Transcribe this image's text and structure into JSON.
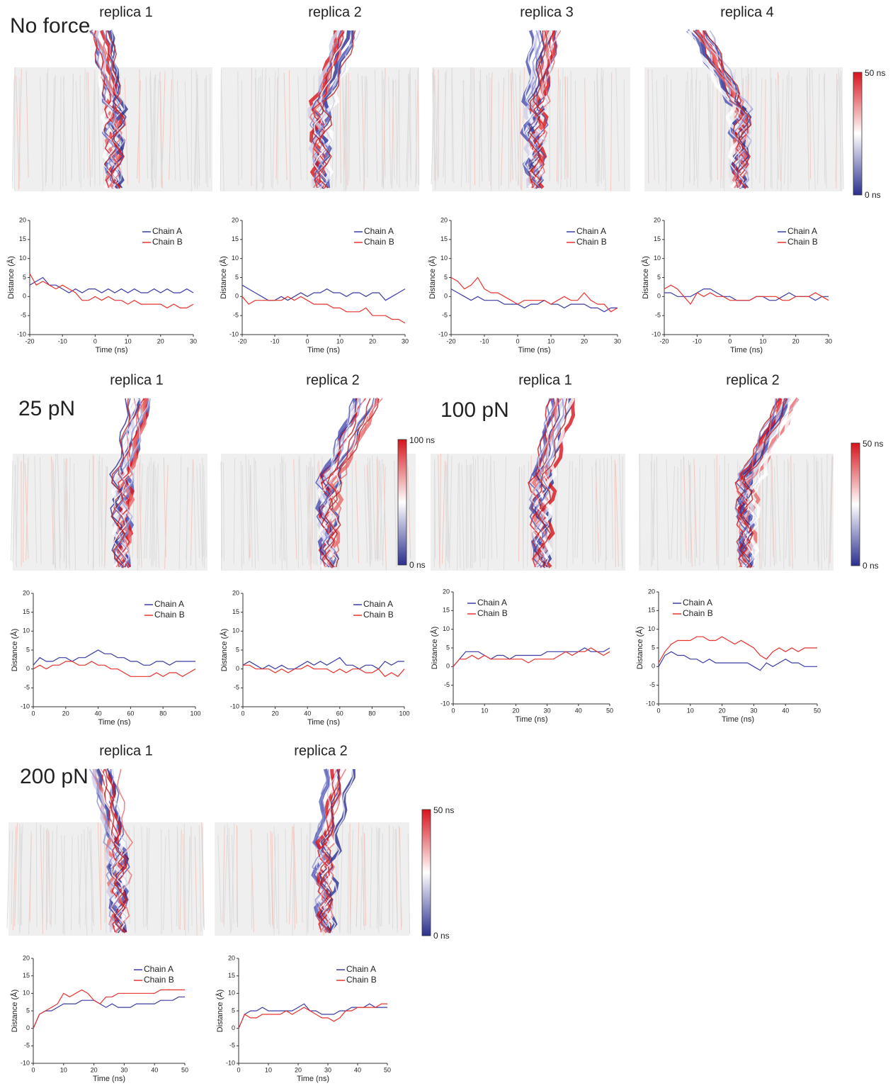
{
  "row_labels": [
    "No force",
    "25 pN",
    "100 pN",
    "200 pN"
  ],
  "colorbars": [
    {
      "max": "50 ns",
      "min": "0 ns"
    },
    {
      "max": "100 ns",
      "min": "0 ns"
    },
    {
      "max": "50 ns",
      "min": "0 ns"
    },
    {
      "max": "50 ns",
      "min": "0 ns"
    }
  ],
  "chart_data": [
    {
      "type": "line",
      "title": "replica 1",
      "x_label": "Time (ns)",
      "y_label": "Distance (Å)",
      "legend": "upper right",
      "x": [
        -20,
        -18,
        -16,
        -14,
        -12,
        -10,
        -8,
        -6,
        -4,
        -2,
        0,
        2,
        4,
        6,
        8,
        10,
        12,
        14,
        16,
        18,
        20,
        22,
        24,
        26,
        28,
        30
      ],
      "series": [
        {
          "name": "Chain A",
          "color": "#3b3ba6",
          "values": [
            3,
            4,
            5,
            3,
            3,
            2,
            1,
            2,
            1,
            2,
            2,
            1,
            2,
            1,
            2,
            1,
            2,
            1,
            1,
            2,
            1,
            2,
            1,
            1,
            2,
            1
          ]
        },
        {
          "name": "Chain B",
          "color": "#e8322d",
          "values": [
            6,
            3,
            4,
            3,
            2,
            3,
            2,
            1,
            -1,
            -1,
            0,
            -1,
            0,
            -1,
            -1,
            -2,
            -1,
            -2,
            -2,
            -2,
            -2,
            -3,
            -2,
            -3,
            -3,
            -2
          ]
        }
      ],
      "xlim": [
        -20,
        30
      ],
      "xticks": [
        -20,
        -10,
        0,
        10,
        20,
        30
      ],
      "ylim": [
        -10,
        20
      ],
      "yticks": [
        -10,
        -5,
        0,
        5,
        10,
        15,
        20
      ]
    },
    {
      "type": "line",
      "title": "replica 2",
      "x_label": "Time (ns)",
      "y_label": "Distance (Å)",
      "legend": "upper right",
      "x": [
        -20,
        -18,
        -16,
        -14,
        -12,
        -10,
        -8,
        -6,
        -4,
        -2,
        0,
        2,
        4,
        6,
        8,
        10,
        12,
        14,
        16,
        18,
        20,
        22,
        24,
        26,
        28,
        30
      ],
      "series": [
        {
          "name": "Chain A",
          "color": "#3b3ba6",
          "values": [
            3,
            2,
            1,
            0,
            -1,
            -1,
            0,
            -1,
            0,
            1,
            0,
            1,
            1,
            2,
            1,
            1,
            0,
            1,
            1,
            0,
            1,
            1,
            -1,
            0,
            1,
            2
          ]
        },
        {
          "name": "Chain B",
          "color": "#e8322d",
          "values": [
            0,
            -2,
            -1,
            -1,
            -1,
            -1,
            -1,
            0,
            -1,
            0,
            -1,
            -2,
            -2,
            -2,
            -3,
            -3,
            -4,
            -4,
            -4,
            -3,
            -5,
            -5,
            -5,
            -6,
            -6,
            -7
          ]
        }
      ],
      "xlim": [
        -20,
        30
      ],
      "xticks": [
        -20,
        -10,
        0,
        10,
        20,
        30
      ],
      "ylim": [
        -10,
        20
      ],
      "yticks": [
        -10,
        -5,
        0,
        5,
        10,
        15,
        20
      ]
    },
    {
      "type": "line",
      "title": "replica 3",
      "x_label": "Time (ns)",
      "y_label": "Distance (Å)",
      "legend": "upper right",
      "x": [
        -20,
        -18,
        -16,
        -14,
        -12,
        -10,
        -8,
        -6,
        -4,
        -2,
        0,
        2,
        4,
        6,
        8,
        10,
        12,
        14,
        16,
        18,
        20,
        22,
        24,
        26,
        28,
        30
      ],
      "series": [
        {
          "name": "Chain A",
          "color": "#3b3ba6",
          "values": [
            2,
            1,
            0,
            -1,
            0,
            -1,
            -1,
            -1,
            -2,
            -2,
            -2,
            -3,
            -2,
            -2,
            -1,
            -2,
            -2,
            -3,
            -2,
            -2,
            -2,
            -3,
            -3,
            -4,
            -3,
            -3
          ]
        },
        {
          "name": "Chain B",
          "color": "#e8322d",
          "values": [
            5,
            4,
            2,
            3,
            5,
            2,
            1,
            1,
            0,
            -1,
            -2,
            -1,
            -1,
            -1,
            -1,
            -2,
            -1,
            0,
            -1,
            -1,
            1,
            -1,
            -2,
            -2,
            -4,
            -3
          ]
        }
      ],
      "xlim": [
        -20,
        30
      ],
      "xticks": [
        -20,
        -10,
        0,
        10,
        20,
        30
      ],
      "ylim": [
        -10,
        20
      ],
      "yticks": [
        -10,
        -5,
        0,
        5,
        10,
        15,
        20
      ]
    },
    {
      "type": "line",
      "title": "replica 4",
      "x_label": "Time (ns)",
      "y_label": "Distance (Å)",
      "legend": "upper right",
      "x": [
        -20,
        -18,
        -16,
        -14,
        -12,
        -10,
        -8,
        -6,
        -4,
        -2,
        0,
        2,
        4,
        6,
        8,
        10,
        12,
        14,
        16,
        18,
        20,
        22,
        24,
        26,
        28,
        30
      ],
      "series": [
        {
          "name": "Chain A",
          "color": "#3b3ba6",
          "values": [
            1,
            1,
            0,
            0,
            0,
            1,
            2,
            2,
            1,
            0,
            0,
            -1,
            -1,
            -1,
            0,
            0,
            -1,
            -1,
            0,
            1,
            0,
            0,
            0,
            -1,
            0,
            0
          ]
        },
        {
          "name": "Chain B",
          "color": "#e8322d",
          "values": [
            2,
            3,
            2,
            0,
            -2,
            1,
            0,
            1,
            0,
            0,
            -1,
            -1,
            -1,
            -1,
            0,
            0,
            0,
            0,
            -1,
            -1,
            0,
            0,
            0,
            1,
            0,
            -1
          ]
        }
      ],
      "xlim": [
        -20,
        30
      ],
      "xticks": [
        -20,
        -10,
        0,
        10,
        20,
        30
      ],
      "ylim": [
        -10,
        20
      ],
      "yticks": [
        -10,
        -5,
        0,
        5,
        10,
        15,
        20
      ]
    },
    {
      "type": "line",
      "title": "replica 1",
      "x_label": "Time (ns)",
      "y_label": "Distance (Å)",
      "legend": "upper right",
      "x": [
        0,
        4,
        8,
        12,
        16,
        20,
        24,
        28,
        32,
        36,
        40,
        44,
        48,
        52,
        56,
        60,
        64,
        68,
        72,
        76,
        80,
        84,
        88,
        92,
        96,
        100
      ],
      "series": [
        {
          "name": "Chain A",
          "color": "#3b3ba6",
          "values": [
            1,
            3,
            2,
            2,
            3,
            3,
            2,
            3,
            3,
            4,
            5,
            4,
            4,
            3,
            3,
            2,
            2,
            1,
            1,
            2,
            2,
            1,
            2,
            2,
            2,
            2
          ]
        },
        {
          "name": "Chain B",
          "color": "#e8322d",
          "values": [
            0,
            1,
            0,
            1,
            1,
            2,
            2,
            1,
            1,
            2,
            1,
            1,
            0,
            0,
            -1,
            -2,
            -2,
            -2,
            -2,
            -1,
            -2,
            -1,
            -1,
            -2,
            -1,
            0
          ]
        }
      ],
      "xlim": [
        0,
        100
      ],
      "xticks": [
        0,
        20,
        40,
        60,
        80,
        100
      ],
      "ylim": [
        -10,
        20
      ],
      "yticks": [
        -10,
        -5,
        0,
        5,
        10,
        15,
        20
      ]
    },
    {
      "type": "line",
      "title": "replica 2",
      "x_label": "Time (ns)",
      "y_label": "Distance (Å)",
      "legend": "upper right",
      "x": [
        0,
        4,
        8,
        12,
        16,
        20,
        24,
        28,
        32,
        36,
        40,
        44,
        48,
        52,
        56,
        60,
        64,
        68,
        72,
        76,
        80,
        84,
        88,
        92,
        96,
        100
      ],
      "series": [
        {
          "name": "Chain A",
          "color": "#3b3ba6",
          "values": [
            1,
            2,
            1,
            0,
            1,
            0,
            1,
            0,
            0,
            1,
            2,
            1,
            2,
            1,
            2,
            3,
            1,
            1,
            0,
            1,
            1,
            0,
            2,
            1,
            2,
            2
          ]
        },
        {
          "name": "Chain B",
          "color": "#e8322d",
          "values": [
            1,
            1,
            0,
            0,
            0,
            -1,
            0,
            -1,
            0,
            0,
            1,
            0,
            0,
            0,
            -1,
            0,
            -1,
            0,
            0,
            -1,
            -1,
            0,
            -2,
            -1,
            -2,
            0
          ]
        }
      ],
      "xlim": [
        0,
        100
      ],
      "xticks": [
        0,
        20,
        40,
        60,
        80,
        100
      ],
      "ylim": [
        -10,
        20
      ],
      "yticks": [
        -10,
        -5,
        0,
        5,
        10,
        15,
        20
      ]
    },
    {
      "type": "line",
      "title": "replica 1",
      "x_label": "Time (ns)",
      "y_label": "Distance (Å)",
      "legend": "upper left",
      "x": [
        0,
        2,
        4,
        6,
        8,
        10,
        12,
        14,
        16,
        18,
        20,
        22,
        24,
        26,
        28,
        30,
        32,
        34,
        36,
        38,
        40,
        42,
        44,
        46,
        48,
        50
      ],
      "series": [
        {
          "name": "Chain A",
          "color": "#3b3ba6",
          "values": [
            0,
            2,
            4,
            4,
            4,
            3,
            2,
            3,
            3,
            2,
            3,
            3,
            3,
            3,
            3,
            4,
            4,
            4,
            4,
            4,
            4,
            5,
            4,
            4,
            4,
            5
          ]
        },
        {
          "name": "Chain B",
          "color": "#e8322d",
          "values": [
            0,
            2,
            2,
            3,
            2,
            3,
            2,
            2,
            2,
            2,
            2,
            2,
            1,
            2,
            2,
            2,
            2,
            3,
            4,
            3,
            4,
            4,
            5,
            4,
            3,
            4
          ]
        }
      ],
      "xlim": [
        0,
        50
      ],
      "xticks": [
        0,
        10,
        20,
        30,
        40,
        50
      ],
      "ylim": [
        -10,
        20
      ],
      "yticks": [
        -10,
        -5,
        0,
        5,
        10,
        15,
        20
      ]
    },
    {
      "type": "line",
      "title": "replica 2",
      "x_label": "Time (ns)",
      "y_label": "Distance (Å)",
      "legend": "upper left",
      "x": [
        0,
        2,
        4,
        6,
        8,
        10,
        12,
        14,
        16,
        18,
        20,
        22,
        24,
        26,
        28,
        30,
        32,
        34,
        36,
        38,
        40,
        42,
        44,
        46,
        48,
        50
      ],
      "series": [
        {
          "name": "Chain A",
          "color": "#3b3ba6",
          "values": [
            0,
            3,
            4,
            3,
            3,
            2,
            2,
            1,
            2,
            1,
            1,
            1,
            1,
            1,
            1,
            0,
            -1,
            1,
            0,
            1,
            2,
            1,
            1,
            0,
            0,
            0
          ]
        },
        {
          "name": "Chain B",
          "color": "#e8322d",
          "values": [
            1,
            4,
            6,
            7,
            7,
            7,
            8,
            8,
            7,
            7,
            8,
            7,
            6,
            7,
            6,
            5,
            3,
            2,
            4,
            5,
            4,
            5,
            4,
            5,
            5,
            5
          ]
        }
      ],
      "xlim": [
        0,
        50
      ],
      "xticks": [
        0,
        10,
        20,
        30,
        40,
        50
      ],
      "ylim": [
        -10,
        20
      ],
      "yticks": [
        -10,
        -5,
        0,
        5,
        10,
        15,
        20
      ]
    },
    {
      "type": "line",
      "title": "replica 1",
      "x_label": "Time (ns)",
      "y_label": "Distance (Å)",
      "legend": "upper right",
      "x": [
        0,
        2,
        4,
        6,
        8,
        10,
        12,
        14,
        16,
        18,
        20,
        22,
        24,
        26,
        28,
        30,
        32,
        34,
        36,
        38,
        40,
        42,
        44,
        46,
        48,
        50
      ],
      "series": [
        {
          "name": "Chain A",
          "color": "#3b3ba6",
          "values": [
            0,
            4,
            5,
            5,
            6,
            7,
            7,
            7,
            8,
            8,
            8,
            7,
            6,
            7,
            6,
            6,
            6,
            7,
            7,
            7,
            7,
            8,
            8,
            8,
            9,
            9
          ]
        },
        {
          "name": "Chain B",
          "color": "#e8322d",
          "values": [
            0,
            4,
            5,
            6,
            7,
            10,
            9,
            10,
            11,
            10,
            8,
            7,
            9,
            9,
            10,
            10,
            10,
            10,
            10,
            10,
            10,
            11,
            11,
            11,
            11,
            11
          ]
        }
      ],
      "xlim": [
        0,
        50
      ],
      "xticks": [
        0,
        10,
        20,
        30,
        40,
        50
      ],
      "ylim": [
        -10,
        20
      ],
      "yticks": [
        -10,
        -5,
        0,
        5,
        10,
        15,
        20
      ]
    },
    {
      "type": "line",
      "title": "replica 2",
      "x_label": "Time (ns)",
      "y_label": "Distance (Å)",
      "legend": "upper right",
      "x": [
        0,
        2,
        4,
        6,
        8,
        10,
        12,
        14,
        16,
        18,
        20,
        22,
        24,
        26,
        28,
        30,
        32,
        34,
        36,
        38,
        40,
        42,
        44,
        46,
        48,
        50
      ],
      "series": [
        {
          "name": "Chain A",
          "color": "#3b3ba6",
          "values": [
            0,
            4,
            5,
            5,
            6,
            5,
            5,
            5,
            5,
            5,
            6,
            7,
            5,
            5,
            4,
            4,
            4,
            5,
            5,
            6,
            6,
            6,
            7,
            6,
            6,
            6
          ]
        },
        {
          "name": "Chain B",
          "color": "#e8322d",
          "values": [
            0,
            4,
            3,
            3,
            4,
            4,
            4,
            4,
            5,
            4,
            5,
            6,
            5,
            4,
            3,
            3,
            2,
            3,
            5,
            5,
            6,
            6,
            6,
            6,
            7,
            7
          ]
        }
      ],
      "xlim": [
        0,
        50
      ],
      "xticks": [
        0,
        10,
        20,
        30,
        40,
        50
      ],
      "ylim": [
        -10,
        20
      ],
      "yticks": [
        -10,
        -5,
        0,
        5,
        10,
        15,
        20
      ]
    }
  ]
}
